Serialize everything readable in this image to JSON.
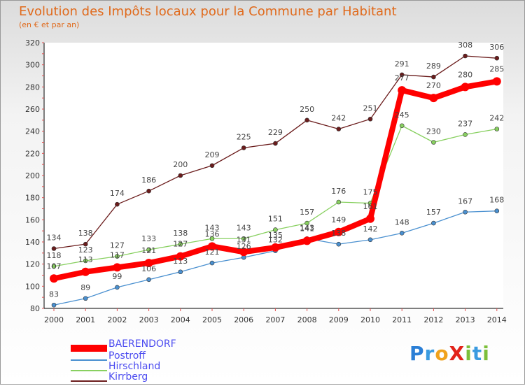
{
  "title": "Evolution des Impôts locaux pour la Commune par Habitant",
  "subtitle": "(en € et par an)",
  "logo": {
    "text": "ProXiti",
    "letters": [
      "P",
      "r",
      "o",
      "X",
      "i",
      "t",
      "i"
    ],
    "colors": [
      "#2b7fd6",
      "#3a9be0",
      "#f0a21c",
      "#e2231a",
      "#7cbf3a",
      "#3a9be0",
      "#7cbf3a"
    ]
  },
  "chart_data": {
    "type": "line",
    "title": "Evolution des Impôts locaux pour la Commune par Habitant",
    "xlabel": "",
    "ylabel": "(en € et par an)",
    "ylim": [
      80,
      320
    ],
    "yticks": [
      80,
      100,
      120,
      140,
      160,
      180,
      200,
      220,
      240,
      260,
      280,
      300,
      320
    ],
    "categories": [
      "2000",
      "2001",
      "2002",
      "2003",
      "2004",
      "2005",
      "2006",
      "2007",
      "2008",
      "2009",
      "2010",
      "2011",
      "2012",
      "2013",
      "2014"
    ],
    "series": [
      {
        "name": "BAERENDORF",
        "color": "#ff0000",
        "values": [
          107,
          113,
          117,
          121,
          127,
          136,
          131,
          135,
          141,
          149,
          161,
          277,
          270,
          280,
          285
        ],
        "labels": [
          "107",
          "113",
          "117",
          "121",
          "127",
          "136",
          "131",
          "135",
          "141",
          "149",
          "161",
          "277",
          "270",
          "280",
          "285"
        ]
      },
      {
        "name": "Postroff",
        "color": "#4a90d0",
        "values": [
          83,
          89,
          99,
          106,
          113,
          121,
          126,
          132,
          143,
          138,
          142,
          148,
          157,
          167,
          168
        ],
        "labels": [
          "83",
          "89",
          "99",
          "106",
          "113",
          "121",
          "126",
          "132",
          "143",
          "138",
          "142",
          "148",
          "157",
          "167",
          "168"
        ]
      },
      {
        "name": "Hirschland",
        "color": "#88d060",
        "values": [
          118,
          123,
          127,
          133,
          138,
          143,
          143,
          151,
          157,
          176,
          175,
          245,
          230,
          237,
          242
        ],
        "labels": [
          "118",
          "123",
          "127",
          "133",
          "138",
          "143",
          "143",
          "151",
          "157",
          "176",
          "175",
          "245",
          "230",
          "237",
          "242"
        ]
      },
      {
        "name": "Kirrberg",
        "color": "#6b1c1c",
        "values": [
          134,
          138,
          174,
          186,
          200,
          209,
          225,
          229,
          250,
          242,
          251,
          291,
          289,
          308,
          306
        ],
        "labels": [
          "134",
          "138",
          "174",
          "186",
          "200",
          "209",
          "225",
          "229",
          "250",
          "242",
          "251",
          "291",
          "289",
          "308",
          "306"
        ]
      }
    ],
    "legend": "bottom-left",
    "grid": false
  }
}
